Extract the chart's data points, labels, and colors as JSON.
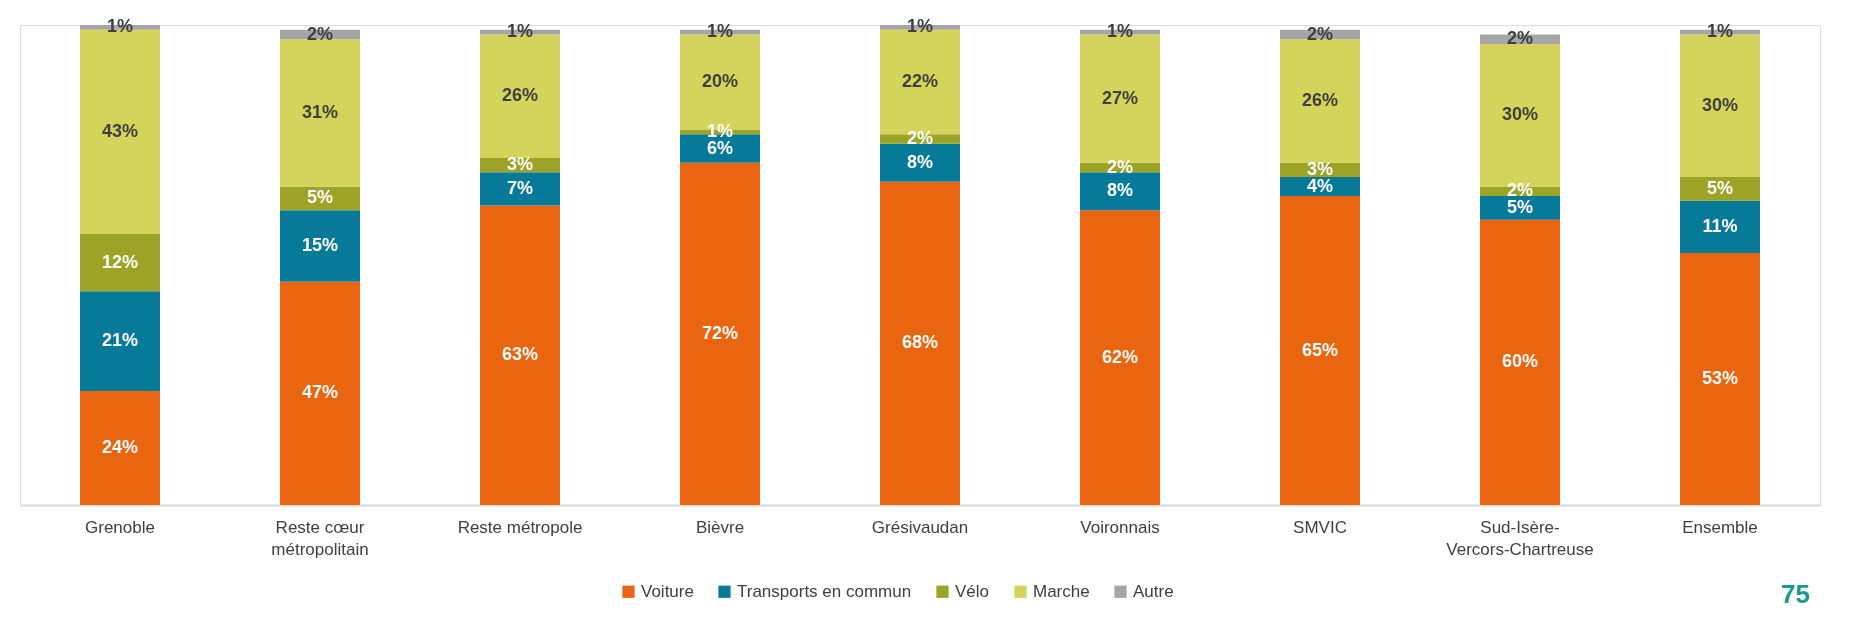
{
  "chart_data": {
    "type": "bar",
    "stacked": true,
    "legend": "bottom",
    "grid": false,
    "categories": [
      "Grenoble",
      "Reste cœur métropolitain",
      "Reste métropole",
      "Bièvre",
      "Grésivaudan",
      "Voironnais",
      "SMVIC",
      "Sud-Isère-Vercors-Chartreuse",
      "Ensemble"
    ],
    "series": [
      {
        "name": "Voiture",
        "color": "#e9650f",
        "values": [
          24,
          47,
          63,
          72,
          68,
          62,
          65,
          60,
          53
        ],
        "value_labels": [
          "24%",
          "47%",
          "63%",
          "72%",
          "68%",
          "62%",
          "65%",
          "60%",
          "53%"
        ]
      },
      {
        "name": "Transports en commun",
        "color": "#087a99",
        "values": [
          21,
          15,
          7,
          6,
          8,
          8,
          4,
          5,
          11
        ],
        "value_labels": [
          "21%",
          "15%",
          "7%",
          "6%",
          "8%",
          "8%",
          "4%",
          "5%",
          "11%"
        ]
      },
      {
        "name": "Vélo",
        "color": "#9ca326",
        "values": [
          12,
          5,
          3,
          1,
          2,
          2,
          3,
          2,
          5
        ],
        "value_labels": [
          "12%",
          "5%",
          "3%",
          "1%",
          "2%",
          "2%",
          "3%",
          "2%",
          "5%"
        ]
      },
      {
        "name": "Marche",
        "color": "#d4d45c",
        "values": [
          43,
          31,
          26,
          20,
          22,
          27,
          26,
          30,
          30
        ],
        "value_labels": [
          "43%",
          "31%",
          "26%",
          "20%",
          "22%",
          "27%",
          "26%",
          "30%",
          "30%"
        ]
      },
      {
        "name": "Autre",
        "color": "#a6a6a6",
        "values": [
          1,
          2,
          1,
          1,
          1,
          1,
          2,
          2,
          1
        ],
        "value_labels": [
          "1%",
          "2%",
          "1%",
          "1%",
          "1%",
          "1%",
          "2%",
          "2%",
          "1%"
        ]
      }
    ],
    "annotations": [
      "75"
    ]
  }
}
